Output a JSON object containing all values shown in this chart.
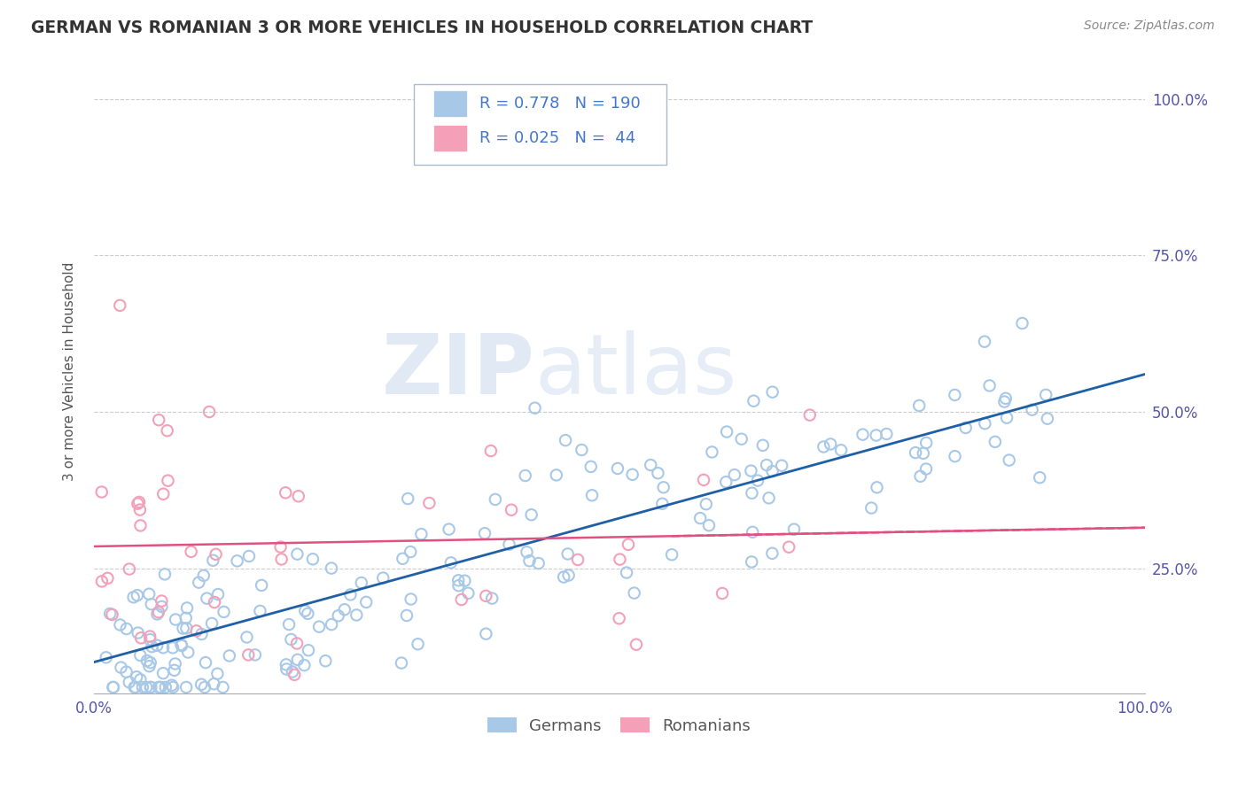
{
  "title": "GERMAN VS ROMANIAN 3 OR MORE VEHICLES IN HOUSEHOLD CORRELATION CHART",
  "source": "Source: ZipAtlas.com",
  "ylabel": "3 or more Vehicles in Household",
  "legend_german_R": "0.778",
  "legend_german_N": "190",
  "legend_romanian_R": "0.025",
  "legend_romanian_N": "44",
  "legend_labels": [
    "Germans",
    "Romanians"
  ],
  "blue_scatter_color": "#a8c8e8",
  "pink_scatter_color": "#f4a0b8",
  "blue_line_color": "#1f5fa6",
  "pink_line_color": "#e05080",
  "watermark_zip": "ZIP",
  "watermark_atlas": "atlas",
  "background_color": "#ffffff",
  "grid_color": "#cccccc",
  "tick_color": "#5555aa",
  "title_color": "#333333",
  "source_color": "#888888",
  "xlim": [
    0.0,
    1.0
  ],
  "ylim": [
    0.05,
    1.08
  ],
  "yticks": [
    0.25,
    0.5,
    0.75,
    1.0
  ],
  "ytick_labels": [
    "25.0%",
    "50.0%",
    "75.0%",
    "100.0%"
  ],
  "xtick_labels": [
    "0.0%",
    "100.0%"
  ],
  "german_slope": 0.46,
  "german_intercept": 0.1,
  "romanian_slope": 0.03,
  "romanian_intercept": 0.285
}
